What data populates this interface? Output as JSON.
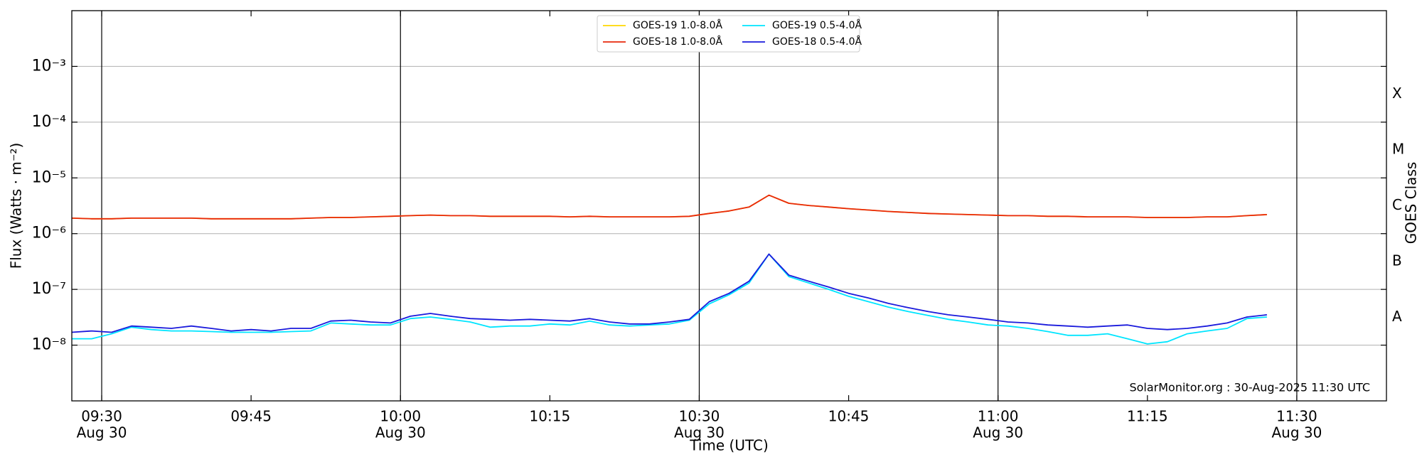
{
  "chart_data": {
    "type": "line",
    "ylabel": "Flux (Watts · m⁻²)",
    "xlabel": "Time (UTC)",
    "y2label": "GOES Class",
    "annotation": "SolarMonitor.org : 30-Aug-2025 11:30 UTC",
    "log_y": true,
    "grid": true,
    "legend": "upper center",
    "ylim": [
      1e-09,
      0.01
    ],
    "yticks": [
      {
        "value": 1e-08,
        "label": "10⁻⁸"
      },
      {
        "value": 1e-07,
        "label": "10⁻⁷"
      },
      {
        "value": 1e-06,
        "label": "10⁻⁶"
      },
      {
        "value": 1e-05,
        "label": "10⁻⁵"
      },
      {
        "value": 0.0001,
        "label": "10⁻⁴"
      },
      {
        "value": 0.001,
        "label": "10⁻³"
      }
    ],
    "y2_labels": [
      {
        "value": 3.162e-08,
        "label": "A"
      },
      {
        "value": 3.162e-07,
        "label": "B"
      },
      {
        "value": 3.162e-06,
        "label": "C"
      },
      {
        "value": 3.162e-05,
        "label": "M"
      },
      {
        "value": 0.0003162,
        "label": "X"
      }
    ],
    "xlim": [
      "09:27",
      "11:39"
    ],
    "xticks": [
      {
        "value": "09:30",
        "label": "09:30",
        "sublabel": "Aug 30"
      },
      {
        "value": "09:45",
        "label": "09:45"
      },
      {
        "value": "10:00",
        "label": "10:00",
        "sublabel": "Aug 30"
      },
      {
        "value": "10:15",
        "label": "10:15"
      },
      {
        "value": "10:30",
        "label": "10:30",
        "sublabel": "Aug 30"
      },
      {
        "value": "10:45",
        "label": "10:45"
      },
      {
        "value": "11:00",
        "label": "11:00",
        "sublabel": "Aug 30"
      },
      {
        "value": "11:15",
        "label": "11:15"
      },
      {
        "value": "11:30",
        "label": "11:30",
        "sublabel": "Aug 30"
      }
    ],
    "x": [
      "09:27",
      "09:29",
      "09:31",
      "09:33",
      "09:35",
      "09:37",
      "09:39",
      "09:41",
      "09:43",
      "09:45",
      "09:47",
      "09:49",
      "09:51",
      "09:53",
      "09:55",
      "09:57",
      "09:59",
      "10:01",
      "10:03",
      "10:05",
      "10:07",
      "10:09",
      "10:11",
      "10:13",
      "10:15",
      "10:17",
      "10:19",
      "10:21",
      "10:23",
      "10:25",
      "10:27",
      "10:29",
      "10:31",
      "10:33",
      "10:35",
      "10:37",
      "10:39",
      "10:41",
      "10:43",
      "10:45",
      "10:47",
      "10:49",
      "10:51",
      "10:53",
      "10:55",
      "10:57",
      "10:59",
      "11:01",
      "11:03",
      "11:05",
      "11:07",
      "11:09",
      "11:11",
      "11:13",
      "11:15",
      "11:17",
      "11:19",
      "11:21",
      "11:23",
      "11:25",
      "11:27"
    ],
    "series": [
      {
        "name": "GOES-19 1.0-8.0Å",
        "color": "#ffd700",
        "values": [
          1.9e-06,
          1.85e-06,
          1.85e-06,
          1.9e-06,
          1.9e-06,
          1.9e-06,
          1.9e-06,
          1.85e-06,
          1.85e-06,
          1.85e-06,
          1.85e-06,
          1.85e-06,
          1.9e-06,
          1.95e-06,
          1.95e-06,
          2e-06,
          2.05e-06,
          2.1e-06,
          2.15e-06,
          2.1e-06,
          2.1e-06,
          2.05e-06,
          2.05e-06,
          2.05e-06,
          2.05e-06,
          2e-06,
          2.05e-06,
          2e-06,
          2e-06,
          2e-06,
          2e-06,
          2.05e-06,
          2.3e-06,
          2.55e-06,
          3e-06,
          4.9e-06,
          3.5e-06,
          3.2e-06,
          3e-06,
          2.8e-06,
          2.65e-06,
          2.5e-06,
          2.4e-06,
          2.3e-06,
          2.25e-06,
          2.2e-06,
          2.15e-06,
          2.1e-06,
          2.1e-06,
          2.05e-06,
          2.05e-06,
          2e-06,
          2e-06,
          2e-06,
          1.95e-06,
          1.95e-06,
          1.95e-06,
          2e-06,
          2e-06,
          2.1e-06,
          2.2e-06
        ]
      },
      {
        "name": "GOES-18 1.0-8.0Å",
        "color": "#e8280c",
        "values": [
          1.9e-06,
          1.85e-06,
          1.85e-06,
          1.9e-06,
          1.9e-06,
          1.9e-06,
          1.9e-06,
          1.85e-06,
          1.85e-06,
          1.85e-06,
          1.85e-06,
          1.85e-06,
          1.9e-06,
          1.95e-06,
          1.95e-06,
          2e-06,
          2.05e-06,
          2.1e-06,
          2.15e-06,
          2.1e-06,
          2.1e-06,
          2.05e-06,
          2.05e-06,
          2.05e-06,
          2.05e-06,
          2e-06,
          2.05e-06,
          2e-06,
          2e-06,
          2e-06,
          2e-06,
          2.05e-06,
          2.3e-06,
          2.55e-06,
          3e-06,
          4.9e-06,
          3.5e-06,
          3.2e-06,
          3e-06,
          2.8e-06,
          2.65e-06,
          2.5e-06,
          2.4e-06,
          2.3e-06,
          2.25e-06,
          2.2e-06,
          2.15e-06,
          2.1e-06,
          2.1e-06,
          2.05e-06,
          2.05e-06,
          2e-06,
          2e-06,
          2e-06,
          1.95e-06,
          1.95e-06,
          1.95e-06,
          2e-06,
          2e-06,
          2.1e-06,
          2.2e-06
        ]
      },
      {
        "name": "GOES-19 0.5-4.0Å",
        "color": "#00e5ff",
        "values": [
          1.3e-08,
          1.3e-08,
          1.6e-08,
          2.1e-08,
          1.9e-08,
          1.8e-08,
          1.8e-08,
          1.75e-08,
          1.7e-08,
          1.7e-08,
          1.7e-08,
          1.75e-08,
          1.8e-08,
          2.5e-08,
          2.4e-08,
          2.3e-08,
          2.3e-08,
          3e-08,
          3.2e-08,
          2.9e-08,
          2.6e-08,
          2.1e-08,
          2.2e-08,
          2.2e-08,
          2.4e-08,
          2.3e-08,
          2.7e-08,
          2.3e-08,
          2.2e-08,
          2.3e-08,
          2.4e-08,
          2.8e-08,
          5.5e-08,
          8e-08,
          1.3e-07,
          4.3e-07,
          1.7e-07,
          1.3e-07,
          1e-07,
          7.5e-08,
          6e-08,
          4.8e-08,
          4e-08,
          3.4e-08,
          2.9e-08,
          2.6e-08,
          2.3e-08,
          2.2e-08,
          2e-08,
          1.75e-08,
          1.5e-08,
          1.5e-08,
          1.6e-08,
          1.3e-08,
          1.05e-08,
          1.15e-08,
          1.6e-08,
          1.8e-08,
          2e-08,
          3e-08,
          3.2e-08
        ]
      },
      {
        "name": "GOES-18 0.5-4.0Å",
        "color": "#1a1adc",
        "values": [
          1.7e-08,
          1.8e-08,
          1.7e-08,
          2.2e-08,
          2.1e-08,
          2e-08,
          2.2e-08,
          2e-08,
          1.8e-08,
          1.9e-08,
          1.8e-08,
          2e-08,
          2e-08,
          2.7e-08,
          2.8e-08,
          2.6e-08,
          2.5e-08,
          3.3e-08,
          3.7e-08,
          3.3e-08,
          3e-08,
          2.9e-08,
          2.8e-08,
          2.9e-08,
          2.8e-08,
          2.7e-08,
          3e-08,
          2.6e-08,
          2.4e-08,
          2.4e-08,
          2.6e-08,
          2.9e-08,
          6e-08,
          8.5e-08,
          1.4e-07,
          4.3e-07,
          1.8e-07,
          1.4e-07,
          1.1e-07,
          8.5e-08,
          7e-08,
          5.6e-08,
          4.7e-08,
          4e-08,
          3.5e-08,
          3.2e-08,
          2.9e-08,
          2.6e-08,
          2.5e-08,
          2.3e-08,
          2.2e-08,
          2.1e-08,
          2.2e-08,
          2.3e-08,
          2e-08,
          1.9e-08,
          2e-08,
          2.2e-08,
          2.5e-08,
          3.2e-08,
          3.5e-08
        ]
      }
    ]
  }
}
